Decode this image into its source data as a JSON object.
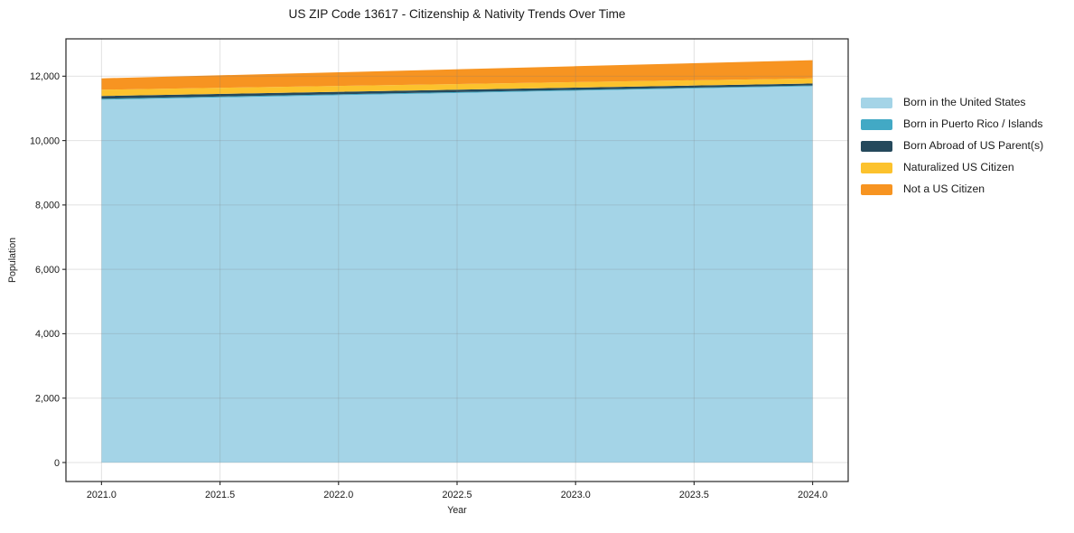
{
  "chart_data": {
    "type": "area",
    "stacked": true,
    "title": "US ZIP Code 13617 - Citizenship & Nativity Trends Over Time",
    "xlabel": "Year",
    "ylabel": "Population",
    "x": [
      2021,
      2022,
      2023,
      2024
    ],
    "series": [
      {
        "name": "Born in the United States",
        "color": "#a4d4e7",
        "values": [
          11270,
          11410,
          11550,
          11690
        ]
      },
      {
        "name": "Born in Puerto Rico / Islands",
        "color": "#42a9c5",
        "values": [
          30,
          27,
          24,
          21
        ]
      },
      {
        "name": "Born Abroad of US Parent(s)",
        "color": "#25495c",
        "values": [
          85,
          78,
          71,
          64
        ]
      },
      {
        "name": "Naturalized US Citizen",
        "color": "#fcc22d",
        "values": [
          195,
          182,
          170,
          157
        ]
      },
      {
        "name": "Not a US Citizen",
        "color": "#f79421",
        "values": [
          355,
          425,
          495,
          565
        ]
      }
    ],
    "xticks": [
      2021.0,
      2021.5,
      2022.0,
      2022.5,
      2023.0,
      2023.5,
      2024.0
    ],
    "xtick_labels": [
      "2021.0",
      "2021.5",
      "2022.0",
      "2022.5",
      "2023.0",
      "2023.5",
      "2024.0"
    ],
    "yticks": [
      0,
      2000,
      4000,
      6000,
      8000,
      10000,
      12000
    ],
    "ytick_labels": [
      "0",
      "2,000",
      "4,000",
      "6,000",
      "8,000",
      "10,000",
      "12,000"
    ],
    "xlim": [
      2020.85,
      2024.15
    ],
    "ylim": [
      -590,
      13160
    ],
    "grid": true,
    "legend_position": "right-outside"
  }
}
